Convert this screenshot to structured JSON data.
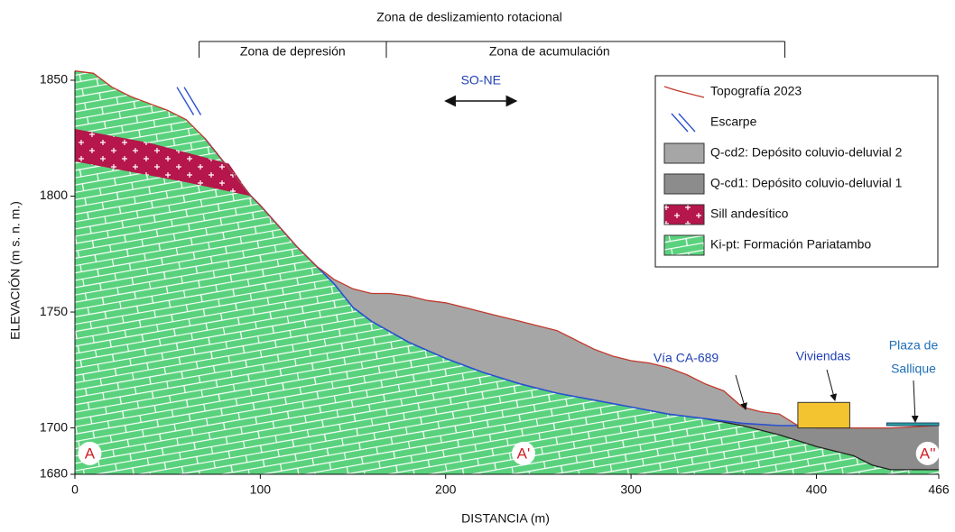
{
  "chart_data": {
    "type": "cross-section",
    "title": "Zona de deslizamiento rotacional",
    "zones": [
      {
        "label": "Zona de depresión",
        "x": [
          67,
          168
        ]
      },
      {
        "label": "Zona de acumulación",
        "x": [
          168,
          383
        ]
      }
    ],
    "direction": {
      "label": "SO-NE",
      "x": [
        200,
        238
      ]
    },
    "xlabel": "DISTANCIA (m)",
    "ylabel": "ELEVACIÓN (m s. n. m.)",
    "xlim": [
      0,
      466
    ],
    "ylim": [
      1680,
      1854
    ],
    "xticks": [
      0,
      100,
      200,
      300,
      400,
      466
    ],
    "yticks": [
      1680,
      1700,
      1750,
      1800,
      1850
    ],
    "topography": {
      "name": "Topografía 2023",
      "color": "#c0392b",
      "x": [
        0,
        10,
        20,
        30,
        40,
        50,
        60,
        70,
        80,
        90,
        95,
        100,
        110,
        120,
        130,
        140,
        150,
        160,
        170,
        180,
        190,
        200,
        210,
        220,
        230,
        240,
        250,
        260,
        270,
        280,
        290,
        300,
        310,
        320,
        330,
        340,
        350,
        360,
        370,
        380,
        390,
        400,
        420,
        440,
        466
      ],
      "values": [
        1854,
        1853,
        1847,
        1843,
        1840,
        1837,
        1833,
        1825,
        1815,
        1805,
        1800,
        1796,
        1787,
        1778,
        1770,
        1764,
        1760,
        1758,
        1758,
        1757,
        1755,
        1754,
        1752,
        1750,
        1748,
        1746,
        1744,
        1742,
        1738,
        1734,
        1731,
        1729,
        1728,
        1726,
        1723,
        1719,
        1716,
        1709,
        1707,
        1706,
        1701,
        1700,
        1700,
        1700,
        1701
      ]
    },
    "escarpment": {
      "name": "Escarpe",
      "color": "#2a4fd0",
      "x": [
        57,
        66
      ],
      "values": [
        1847,
        1835
      ]
    },
    "units": [
      {
        "name": "Q-cd2: Depósito coluvio-deluvial 2",
        "color": "#a6a6a6",
        "line_color": "#2a4fd0",
        "x": [
          70,
          80,
          90,
          95,
          100,
          110,
          120,
          130,
          140,
          150,
          160,
          180,
          200,
          220,
          240,
          260,
          280,
          300,
          320,
          340,
          360,
          380,
          390
        ],
        "values": [
          1825,
          1815,
          1805,
          1800,
          1796,
          1787,
          1778,
          1770,
          1762,
          1752,
          1746,
          1737,
          1730,
          1724,
          1719,
          1715,
          1712,
          1709,
          1706,
          1704,
          1702,
          1701,
          1701
        ]
      },
      {
        "name": "Q-cd1: Depósito coluvio-deluvial 1",
        "color": "#8c8c8c",
        "x": [
          340,
          360,
          380,
          400,
          420,
          430,
          440,
          466
        ],
        "values": [
          1704,
          1701,
          1697,
          1692,
          1688,
          1684,
          1682,
          1682
        ]
      },
      {
        "name": "Sill andesítico",
        "color": "#b5164b",
        "x": [
          0,
          40,
          83,
          95,
          60,
          0
        ],
        "values": [
          1829,
          1823,
          1814,
          1800,
          1806,
          1815
        ]
      },
      {
        "name": "Ki-pt: Formación Pariatambo",
        "color": "#5ad27d"
      }
    ],
    "features": [
      {
        "label": "Vía CA-689",
        "color": "#1f3fb5"
      },
      {
        "label": "Viviendas",
        "color": "#1f3fb5",
        "fill": "#f4c430",
        "x": [
          390,
          418
        ],
        "values": [
          1700,
          1711
        ]
      },
      {
        "label": [
          "Plaza de",
          "Sallique"
        ],
        "color": "#1f6fb5",
        "fill": "#2aa3a3",
        "x": [
          438,
          466
        ],
        "values": [
          1701
        ]
      }
    ],
    "sections": {
      "labels": [
        "A",
        "A'",
        "A''"
      ],
      "x": [
        8,
        242,
        460
      ],
      "values": [
        1689,
        1689,
        1689
      ],
      "color": "#d0212a"
    }
  }
}
